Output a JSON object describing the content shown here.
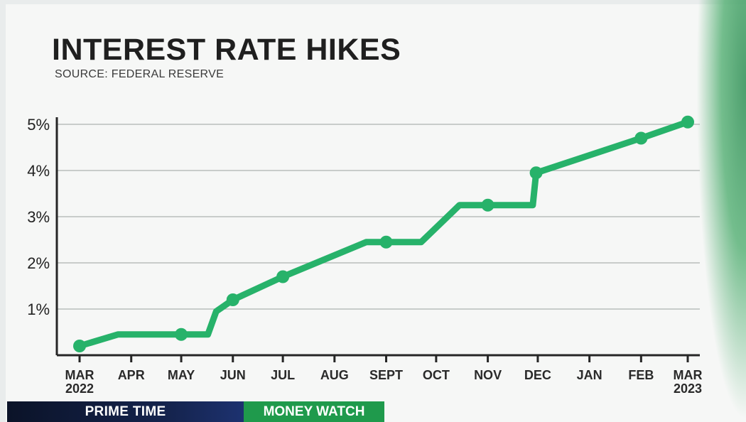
{
  "header": {
    "title": "INTEREST RATE HIKES",
    "source": "SOURCE: FEDERAL RESERVE"
  },
  "lower_third": {
    "program": "PRIME TIME",
    "segment": "MONEY WATCH"
  },
  "colors": {
    "series": "#27b26a",
    "segment_bg": "#1f9a4c",
    "program_bg": "#15244f"
  },
  "chart_data": {
    "type": "line",
    "title": "INTEREST RATE HIKES",
    "subtitle": "SOURCE: FEDERAL RESERVE",
    "x_range": [
      "2022-03-01",
      "2023-03-01"
    ],
    "ylim": [
      0,
      5
    ],
    "y_ticks": [
      1,
      2,
      3,
      4,
      5
    ],
    "y_tick_labels": [
      "1%",
      "2%",
      "3%",
      "4%",
      "5%"
    ],
    "x_ticks": [
      {
        "date": "2022-03-01",
        "line1": "MAR",
        "line2": "2022"
      },
      {
        "date": "2022-04-01",
        "line1": "APR",
        "line2": ""
      },
      {
        "date": "2022-05-01",
        "line1": "MAY",
        "line2": ""
      },
      {
        "date": "2022-06-01",
        "line1": "JUN",
        "line2": ""
      },
      {
        "date": "2022-07-01",
        "line1": "JUL",
        "line2": ""
      },
      {
        "date": "2022-08-01",
        "line1": "AUG",
        "line2": ""
      },
      {
        "date": "2022-09-01",
        "line1": "SEPT",
        "line2": ""
      },
      {
        "date": "2022-10-01",
        "line1": "OCT",
        "line2": ""
      },
      {
        "date": "2022-11-01",
        "line1": "NOV",
        "line2": ""
      },
      {
        "date": "2022-12-01",
        "line1": "DEC",
        "line2": ""
      },
      {
        "date": "2023-01-01",
        "line1": "JAN",
        "line2": ""
      },
      {
        "date": "2023-02-01",
        "line1": "FEB",
        "line2": ""
      },
      {
        "date": "2023-03-01",
        "line1": "MAR",
        "line2": "2023"
      }
    ],
    "grid": true,
    "series": [
      {
        "line": [
          {
            "x": "2022-03-01",
            "y": 0.2
          },
          {
            "x": "2022-03-24",
            "y": 0.45
          },
          {
            "x": "2022-05-01",
            "y": 0.45
          },
          {
            "x": "2022-05-17",
            "y": 0.45
          },
          {
            "x": "2022-05-22",
            "y": 0.95
          },
          {
            "x": "2022-06-01",
            "y": 1.2
          },
          {
            "x": "2022-07-01",
            "y": 1.7
          },
          {
            "x": "2022-08-20",
            "y": 2.45
          },
          {
            "x": "2022-09-01",
            "y": 2.45
          },
          {
            "x": "2022-09-22",
            "y": 2.45
          },
          {
            "x": "2022-10-15",
            "y": 3.25
          },
          {
            "x": "2022-11-01",
            "y": 3.25
          },
          {
            "x": "2022-11-28",
            "y": 3.25
          },
          {
            "x": "2022-11-30",
            "y": 3.95
          },
          {
            "x": "2023-02-01",
            "y": 4.7
          },
          {
            "x": "2023-03-01",
            "y": 5.05
          }
        ],
        "markers": [
          {
            "x": "2022-03-01",
            "y": 0.2
          },
          {
            "x": "2022-05-01",
            "y": 0.45
          },
          {
            "x": "2022-06-01",
            "y": 1.2
          },
          {
            "x": "2022-07-01",
            "y": 1.7
          },
          {
            "x": "2022-09-01",
            "y": 2.45
          },
          {
            "x": "2022-11-01",
            "y": 3.25
          },
          {
            "x": "2022-11-30",
            "y": 3.95
          },
          {
            "x": "2023-02-01",
            "y": 4.7
          },
          {
            "x": "2023-03-01",
            "y": 5.05
          }
        ]
      }
    ]
  }
}
